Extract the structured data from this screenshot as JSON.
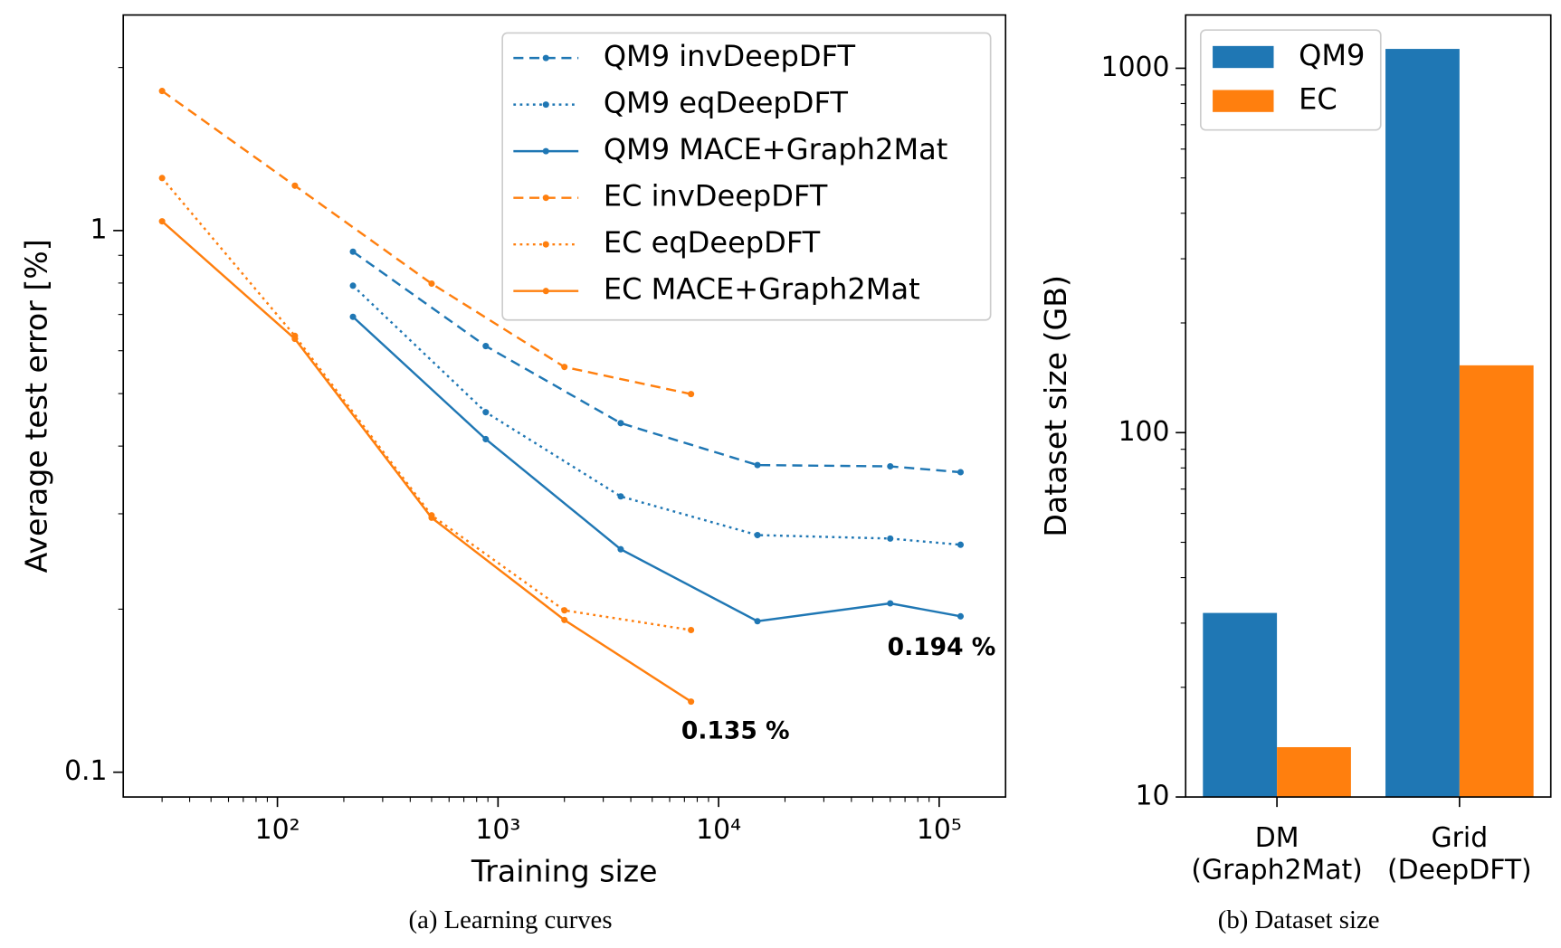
{
  "chart_data": [
    {
      "type": "line",
      "caption": "(a) Learning curves",
      "xlabel": "Training size",
      "ylabel": "Average test error [%]",
      "xscale": "log",
      "yscale": "log",
      "minor_ticks": true,
      "xlim": [
        20,
        200000
      ],
      "ylim": [
        0.09,
        2.5
      ],
      "xticks": [
        {
          "value": 100,
          "label": "10²"
        },
        {
          "value": 1000,
          "label": "10³"
        },
        {
          "value": 10000,
          "label": "10⁴"
        },
        {
          "value": 100000,
          "label": "10⁵"
        }
      ],
      "yticks": [
        0.1,
        1
      ],
      "legend": "upper right",
      "series": [
        {
          "name": "QM9 invDeepDFT",
          "color": "#1f77b4",
          "linestyle": "dashed",
          "x": [
            220,
            880,
            3600,
            15000,
            60000,
            125000
          ],
          "values": [
            0.914,
            0.612,
            0.441,
            0.369,
            0.367,
            0.358
          ]
        },
        {
          "name": "QM9 eqDeepDFT",
          "color": "#1f77b4",
          "linestyle": "dotted",
          "x": [
            220,
            880,
            3600,
            15000,
            60000,
            125000
          ],
          "values": [
            0.791,
            0.462,
            0.323,
            0.274,
            0.27,
            0.263
          ]
        },
        {
          "name": "QM9 MACE+Graph2Mat",
          "color": "#1f77b4",
          "linestyle": "solid",
          "x": [
            220,
            880,
            3600,
            15000,
            60000,
            125000
          ],
          "values": [
            0.693,
            0.412,
            0.258,
            0.19,
            0.205,
            0.194
          ]
        },
        {
          "name": "EC invDeepDFT",
          "color": "#ff7f0e",
          "linestyle": "dashed",
          "x": [
            30,
            120,
            500,
            2000,
            7500
          ],
          "values": [
            1.81,
            1.21,
            0.798,
            0.56,
            0.499
          ]
        },
        {
          "name": "EC eqDeepDFT",
          "color": "#ff7f0e",
          "linestyle": "dotted",
          "x": [
            30,
            120,
            500,
            2000,
            7500
          ],
          "values": [
            1.25,
            0.639,
            0.298,
            0.199,
            0.183
          ]
        },
        {
          "name": "EC MACE+Graph2Mat",
          "color": "#ff7f0e",
          "linestyle": "solid",
          "x": [
            30,
            120,
            500,
            2000,
            7500
          ],
          "values": [
            1.04,
            0.631,
            0.295,
            0.191,
            0.135
          ]
        }
      ],
      "annotations": [
        {
          "text": "0.194 %",
          "color": "#1f77b4"
        },
        {
          "text": "0.135 %",
          "color": "#ff7f0e"
        }
      ]
    },
    {
      "type": "bar",
      "caption": "(b) Dataset size",
      "ylabel": "Dataset size (GB)",
      "yscale": "log",
      "minor_ticks": true,
      "ylim": [
        10,
        1400
      ],
      "yticks": [
        10,
        100,
        1000
      ],
      "legend": "upper left",
      "categories": [
        [
          "DM",
          "(Graph2Mat)"
        ],
        [
          "Grid",
          "(DeepDFT)"
        ]
      ],
      "series": [
        {
          "name": "QM9",
          "color": "#1f77b4",
          "values": [
            32,
            1130
          ]
        },
        {
          "name": "EC",
          "color": "#ff7f0e",
          "values": [
            13.7,
            153
          ]
        }
      ]
    }
  ]
}
